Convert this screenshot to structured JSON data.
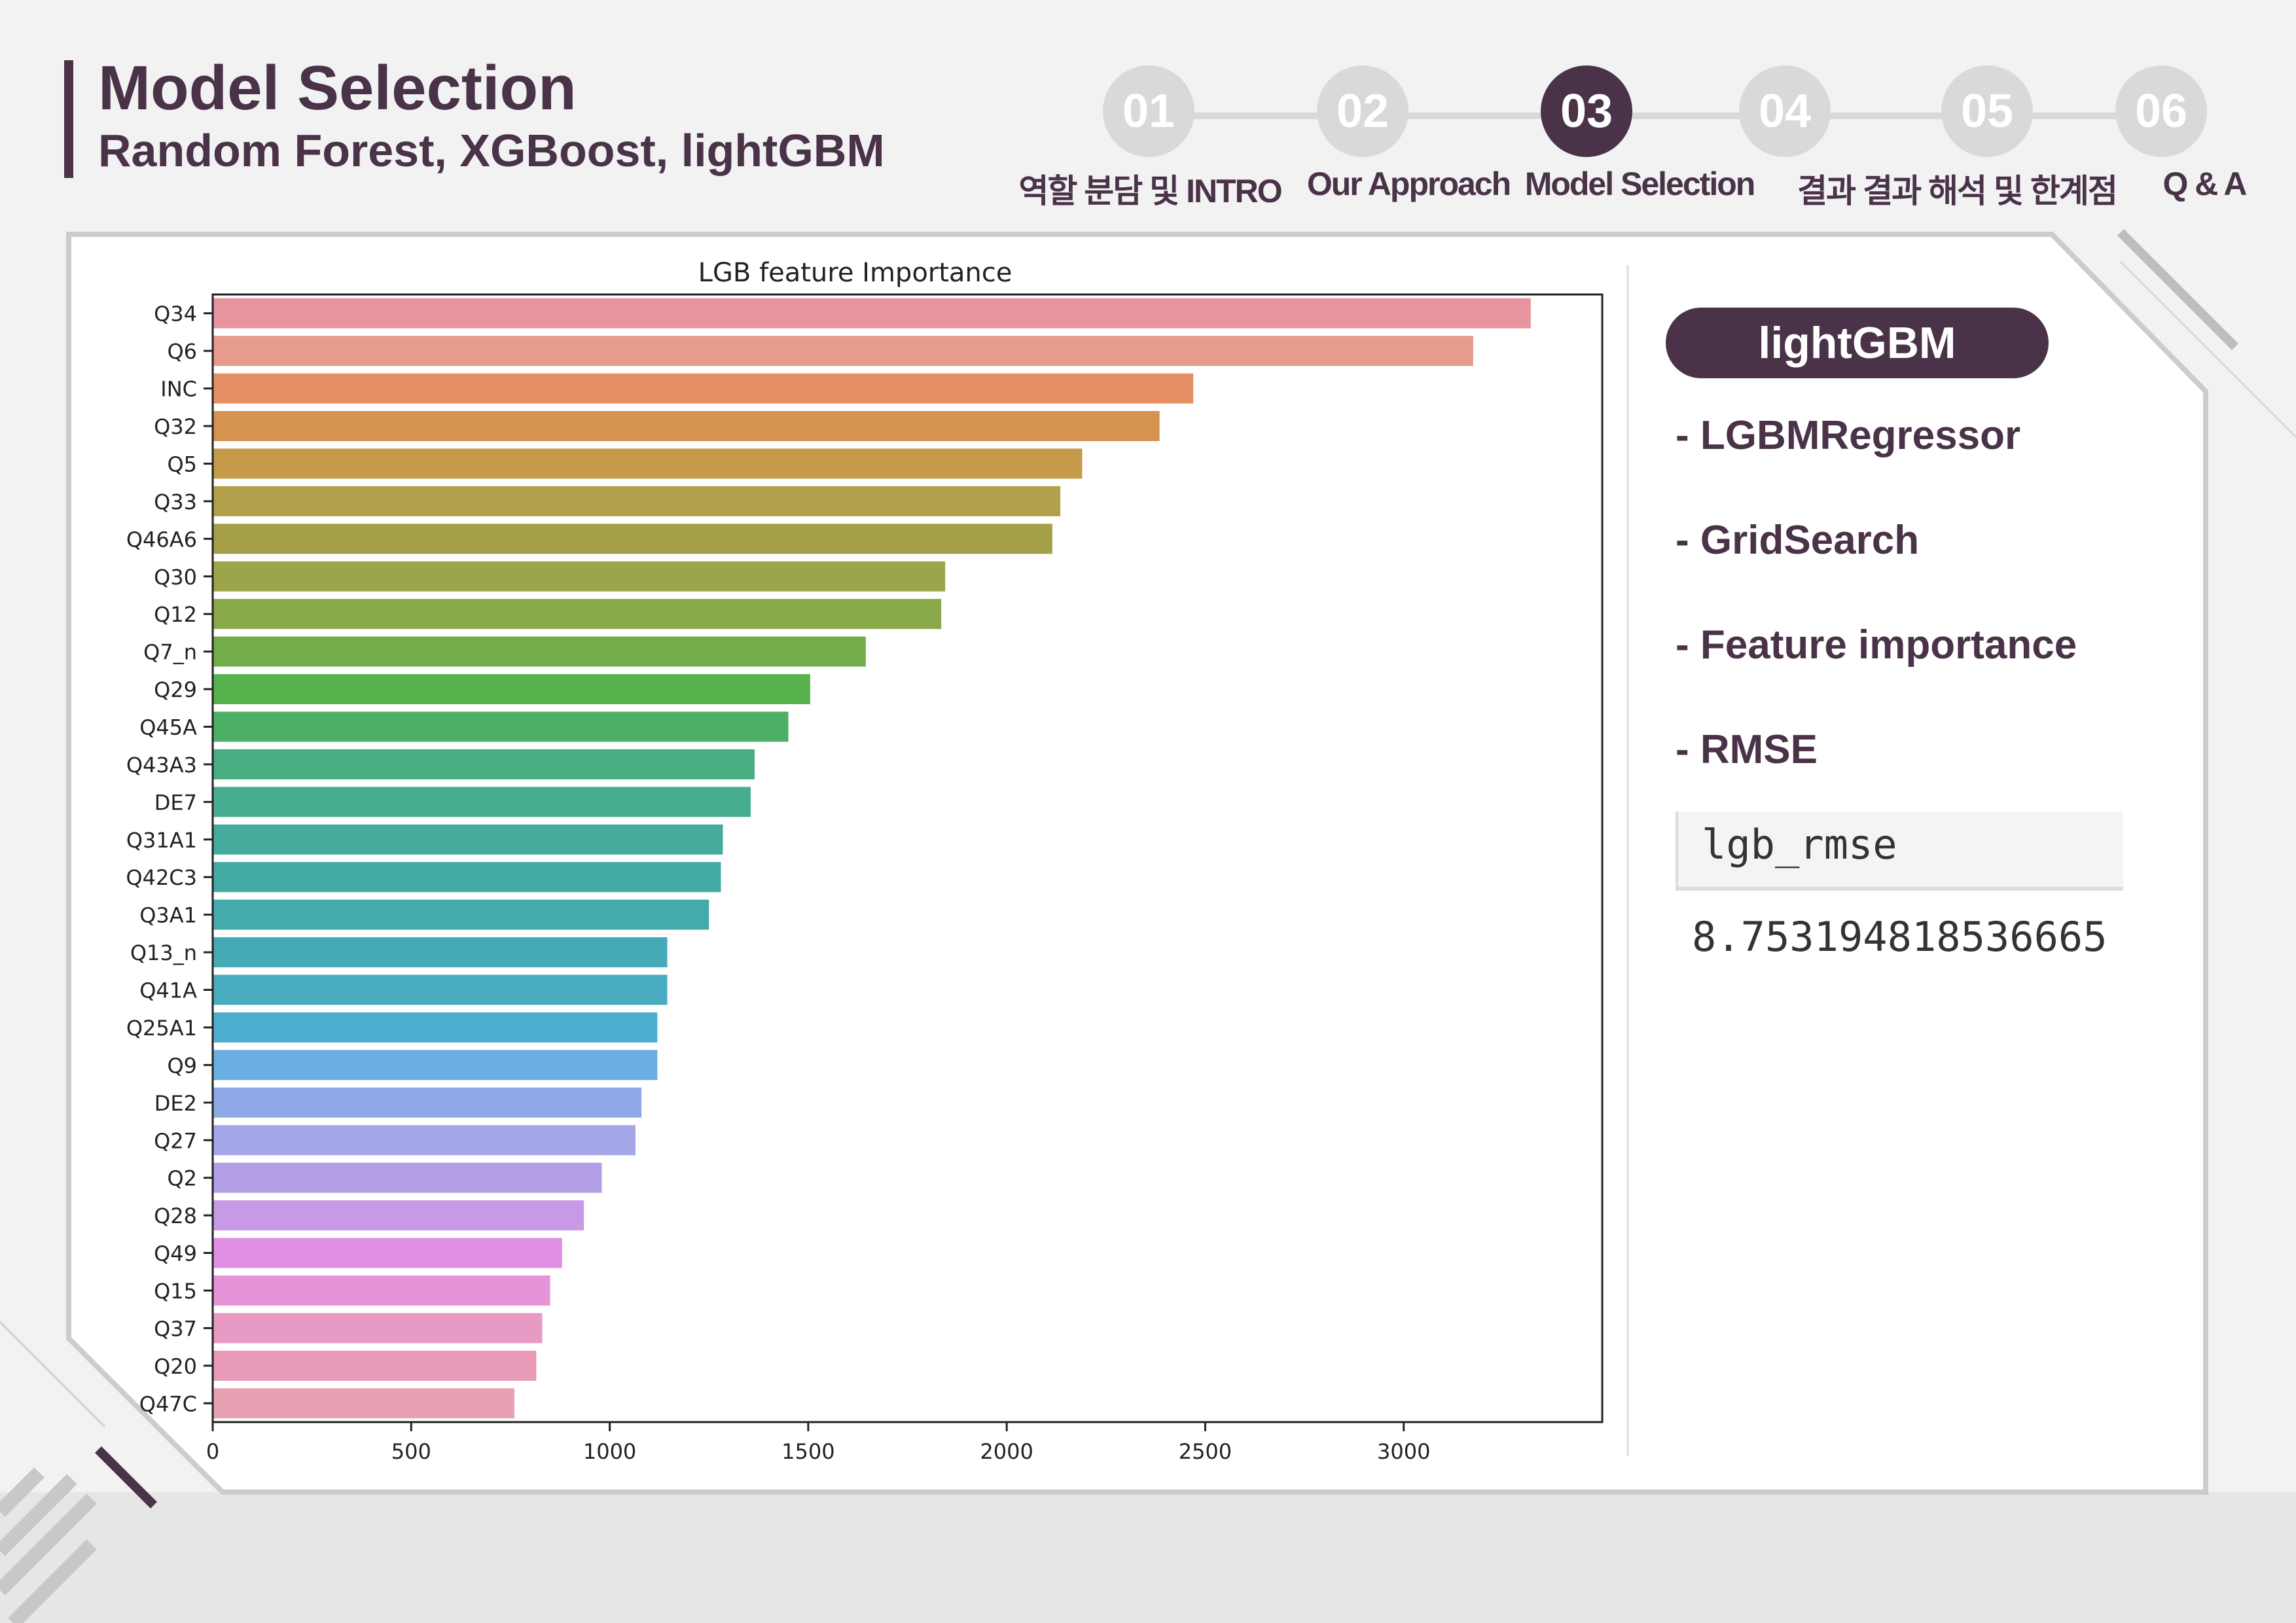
{
  "header": {
    "title": "Model Selection",
    "subtitle": "Random Forest, XGBoost, lightGBM"
  },
  "steps": [
    {
      "num": "01",
      "label": "역할 분담 및 INTRO",
      "active": false
    },
    {
      "num": "02",
      "label": "Our Approach",
      "active": false
    },
    {
      "num": "03",
      "label": "Model Selection",
      "active": true
    },
    {
      "num": "04",
      "label": "결과",
      "active": false
    },
    {
      "num": "05",
      "label": "결과 해석 및 한계점",
      "active": false
    },
    {
      "num": "06",
      "label": "Q & A",
      "active": false
    }
  ],
  "colors": {
    "accent": "#4a3348",
    "inactive_step": "#d9d9d9"
  },
  "sidebar": {
    "pill": "lightGBM",
    "bullets": [
      "- LGBMRegressor",
      "- GridSearch",
      "- Feature importance",
      "- RMSE"
    ],
    "rmse_label": "lgb_rmse",
    "rmse_value": "8.753194818536665"
  },
  "chart_data": {
    "type": "bar",
    "orientation": "horizontal",
    "title": "LGB feature Importance",
    "xlabel": "",
    "ylabel": "",
    "xlim": [
      0,
      3500
    ],
    "xticks": [
      0,
      500,
      1000,
      1500,
      2000,
      2500,
      3000
    ],
    "categories": [
      "Q34",
      "Q6",
      "INC",
      "Q32",
      "Q5",
      "Q33",
      "Q46A6",
      "Q30",
      "Q12",
      "Q7_n",
      "Q29",
      "Q45A",
      "Q43A3",
      "DE7",
      "Q31A1",
      "Q42C3",
      "Q3A1",
      "Q13_n",
      "Q41A",
      "Q25A1",
      "Q9",
      "DE2",
      "Q27",
      "Q2",
      "Q28",
      "Q49",
      "Q15",
      "Q37",
      "Q20",
      "Q47C"
    ],
    "values": [
      3320,
      3175,
      2470,
      2385,
      2190,
      2135,
      2115,
      1845,
      1835,
      1645,
      1505,
      1450,
      1365,
      1355,
      1285,
      1280,
      1250,
      1145,
      1145,
      1120,
      1120,
      1080,
      1065,
      980,
      935,
      880,
      850,
      830,
      815,
      760
    ],
    "colors": [
      "#e8949f",
      "#e79b8c",
      "#e78f64",
      "#d6924f",
      "#c59a48",
      "#b2a04a",
      "#a4a049",
      "#9da54a",
      "#8aa94b",
      "#73ad4a",
      "#56b24c",
      "#4daf65",
      "#48ae82",
      "#47ad90",
      "#45ab9c",
      "#44aaa4",
      "#44aaab",
      "#46aab6",
      "#48abc0",
      "#4eaed0",
      "#6aafe3",
      "#8eaae6",
      "#a5a6e8",
      "#b39fe6",
      "#c899e6",
      "#df8fe4",
      "#e594d8",
      "#e79ac4",
      "#e99ab8",
      "#e8a0b3"
    ],
    "grid": false,
    "legend": "none"
  }
}
